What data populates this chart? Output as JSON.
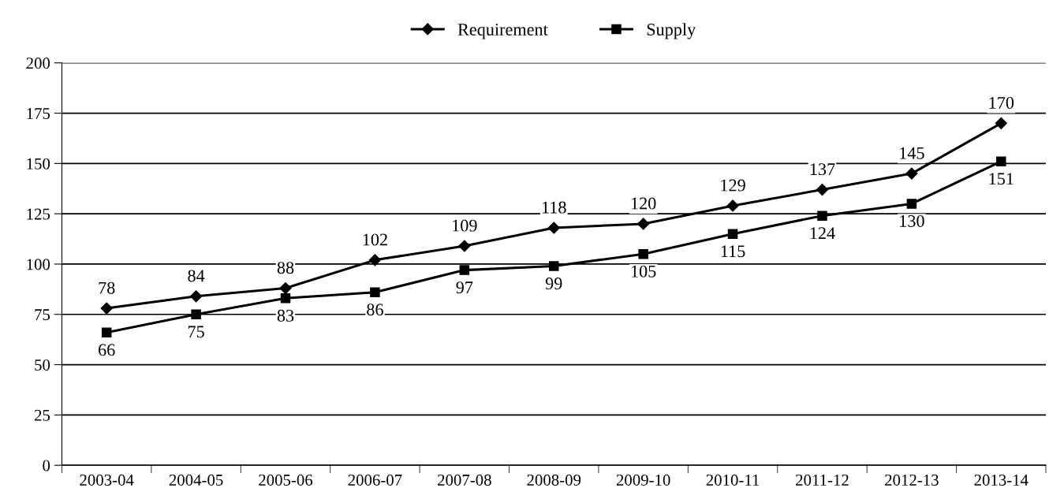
{
  "chart_data": {
    "type": "line",
    "categories": [
      "2003-04",
      "2004-05",
      "2005-06",
      "2006-07",
      "2007-08",
      "2008-09",
      "2009-10",
      "2010-11",
      "2011-12",
      "2012-13",
      "2013-14"
    ],
    "series": [
      {
        "name": "Requirement",
        "color": "#000000",
        "marker": "diamond",
        "values": [
          78,
          84,
          88,
          102,
          109,
          118,
          120,
          129,
          137,
          145,
          170
        ]
      },
      {
        "name": "Supply",
        "color": "#000000",
        "marker": "square",
        "values": [
          66,
          75,
          83,
          86,
          97,
          99,
          105,
          115,
          124,
          130,
          151
        ]
      }
    ],
    "ylim": [
      0,
      200
    ],
    "yticks": [
      0,
      25,
      50,
      75,
      100,
      125,
      150,
      175,
      200
    ],
    "grid": "y",
    "legend": "top",
    "data_labels": true,
    "line_style": "solid"
  }
}
